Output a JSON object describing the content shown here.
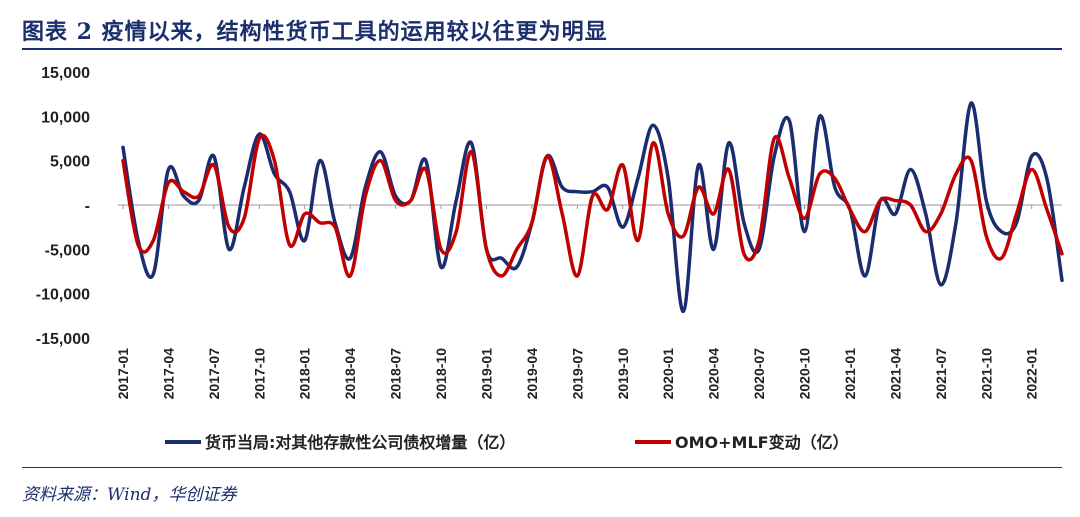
{
  "header": {
    "title": "图表 2   疫情以来，结构性货币工具的运用较以往更为明显"
  },
  "footer": {
    "source": "资料来源：Wind，华创证券"
  },
  "chart_data": {
    "type": "line",
    "title": "疫情以来，结构性货币工具的运用较以往更为明显",
    "xlabel": "",
    "ylabel": "",
    "ylim": [
      -15000,
      15000
    ],
    "yticks": [
      15000,
      10000,
      5000,
      0,
      -5000,
      -10000,
      -15000
    ],
    "ytick_labels": [
      "15,000",
      "10,000",
      "5,000",
      "-",
      "-5,000",
      "-10,000",
      "-15,000"
    ],
    "x": [
      "2017-01",
      "2017-02",
      "2017-03",
      "2017-04",
      "2017-05",
      "2017-06",
      "2017-07",
      "2017-08",
      "2017-09",
      "2017-10",
      "2017-11",
      "2017-12",
      "2018-01",
      "2018-02",
      "2018-03",
      "2018-04",
      "2018-05",
      "2018-06",
      "2018-07",
      "2018-08",
      "2018-09",
      "2018-10",
      "2018-11",
      "2018-12",
      "2019-01",
      "2019-02",
      "2019-03",
      "2019-04",
      "2019-05",
      "2019-06",
      "2019-07",
      "2019-08",
      "2019-09",
      "2019-10",
      "2019-11",
      "2019-12",
      "2020-01",
      "2020-02",
      "2020-03",
      "2020-04",
      "2020-05",
      "2020-06",
      "2020-07",
      "2020-08",
      "2020-09",
      "2020-10",
      "2020-11",
      "2020-12",
      "2021-01",
      "2021-02",
      "2021-03",
      "2021-04",
      "2021-05",
      "2021-06",
      "2021-07",
      "2021-08",
      "2021-09",
      "2021-10",
      "2021-11",
      "2021-12",
      "2022-01",
      "2022-02",
      "2022-03"
    ],
    "xtick_labels": [
      "2017-01",
      "2017-04",
      "2017-07",
      "2017-10",
      "2018-01",
      "2018-04",
      "2018-07",
      "2018-10",
      "2019-01",
      "2019-04",
      "2019-07",
      "2019-10",
      "2020-01",
      "2020-04",
      "2020-07",
      "2020-10",
      "2021-01",
      "2021-04",
      "2021-07",
      "2021-10",
      "2022-01"
    ],
    "series": [
      {
        "name": "货币当局:对其他存款性公司债权增量（亿）",
        "color": "#1a2d6e",
        "values": [
          6500,
          -4000,
          -7800,
          4000,
          1000,
          500,
          5500,
          -5000,
          2000,
          8000,
          3500,
          1500,
          -4000,
          5000,
          -2000,
          -6000,
          2000,
          6000,
          1000,
          500,
          5000,
          -7000,
          500,
          7000,
          -5000,
          -6000,
          -7000,
          -2000,
          5500,
          2000,
          1500,
          1500,
          2000,
          -2500,
          3000,
          9000,
          3000,
          -12000,
          4500,
          -5000,
          7000,
          -2000,
          -5000,
          5500,
          9500,
          -3000,
          10000,
          2000,
          -500,
          -8000,
          500,
          -1000,
          4000,
          -1000,
          -9000,
          -2000,
          11500,
          500,
          -3000,
          -2000,
          5500,
          3000,
          -8500
        ]
      },
      {
        "name": "OMO+MLF变动（亿）",
        "color": "#c00000",
        "values": [
          5000,
          -4500,
          -4000,
          2500,
          1500,
          1000,
          4500,
          -2500,
          -1500,
          7500,
          5000,
          -4500,
          -1000,
          -2000,
          -2500,
          -8000,
          1000,
          5000,
          500,
          500,
          4000,
          -5000,
          -3000,
          6000,
          -5000,
          -8000,
          -5000,
          -2000,
          5500,
          -1000,
          -8000,
          1000,
          -500,
          4500,
          -4000,
          7000,
          -1000,
          -3500,
          2000,
          -1000,
          4000,
          -5500,
          -4000,
          7500,
          3000,
          -1500,
          3500,
          3000,
          -500,
          -3000,
          500,
          500,
          0,
          -3000,
          -1000,
          3500,
          5000,
          -3500,
          -6000,
          -1000,
          4000,
          -500,
          -5500
        ]
      }
    ],
    "legend_position": "bottom"
  }
}
